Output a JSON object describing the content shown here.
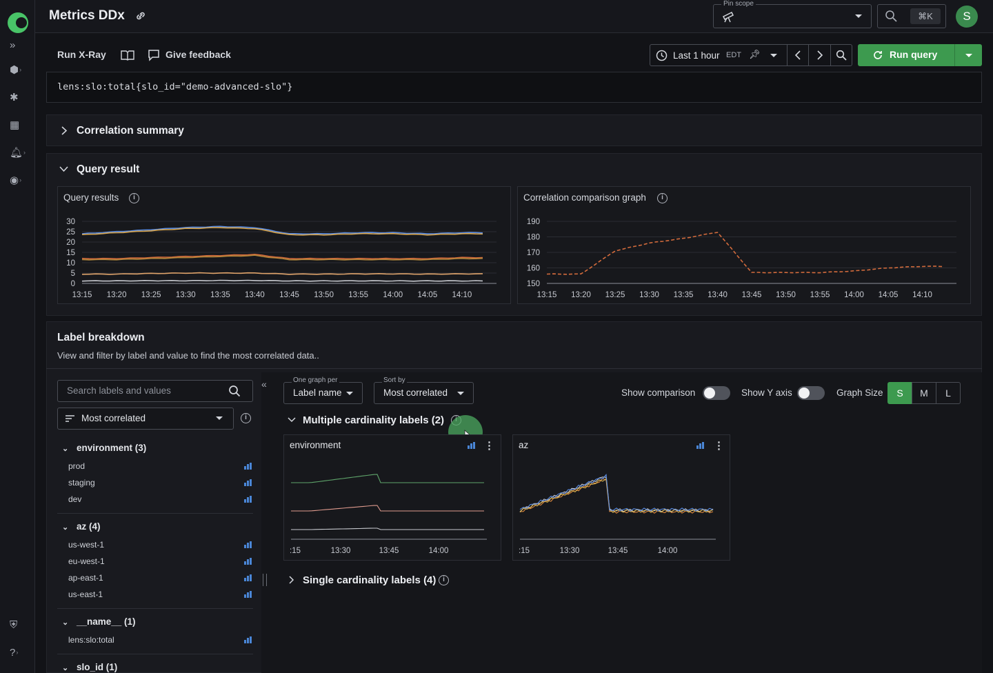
{
  "app": {
    "title": "Metrics DDx"
  },
  "header": {
    "pin_scope_label": "Pin scope",
    "search_shortcut": "⌘K",
    "avatar_initial": "S"
  },
  "toolbar": {
    "run_xray": "Run X-Ray",
    "give_feedback": "Give feedback",
    "time_range": "Last 1 hour",
    "timezone": "EDT",
    "run_query": "Run query"
  },
  "query": {
    "expression": "lens:slo:total{slo_id=\"demo-advanced-slo\"}"
  },
  "correlation_summary": {
    "title": "Correlation summary"
  },
  "query_result": {
    "title": "Query result",
    "results_title": "Query results",
    "comparison_title": "Correlation comparison graph"
  },
  "label_breakdown": {
    "title": "Label breakdown",
    "description": "View and filter by label and value to find the most correlated data..",
    "search_placeholder": "Search labels and values",
    "sort_value": "Most correlated",
    "groups": [
      {
        "name": "environment (3)",
        "items": [
          "prod",
          "staging",
          "dev"
        ]
      },
      {
        "name": "az (4)",
        "items": [
          "us-west-1",
          "eu-west-1",
          "ap-east-1",
          "us-east-1"
        ]
      },
      {
        "name": "__name__ (1)",
        "items": [
          "lens:slo:total"
        ]
      },
      {
        "name": "slo_id (1)",
        "items": []
      }
    ],
    "graph_per_label": "One graph per",
    "graph_per_value": "Label name",
    "sort_by_label": "Sort by",
    "sort_by_value": "Most correlated",
    "show_comparison": "Show comparison",
    "show_y_axis": "Show Y axis",
    "graph_size_label": "Graph Size",
    "graph_sizes": [
      "S",
      "M",
      "L"
    ],
    "selected_size": "S",
    "multiple_title": "Multiple cardinality labels (2)",
    "single_title": "Single cardinality labels (4)",
    "cards": [
      {
        "title": "environment",
        "x_ticks": [
          ":15",
          "13:30",
          "13:45",
          "14:00"
        ]
      },
      {
        "title": "az",
        "x_ticks": [
          ":15",
          "13:30",
          "13:45",
          "14:00"
        ]
      }
    ]
  },
  "chart_data": [
    {
      "type": "line",
      "title": "Query results",
      "x": [
        "13:15",
        "13:20",
        "13:25",
        "13:30",
        "13:35",
        "13:40",
        "13:45",
        "13:50",
        "13:55",
        "14:00",
        "14:05",
        "14:10"
      ],
      "ylim": [
        0,
        30
      ],
      "y_ticks": [
        0,
        5,
        10,
        15,
        20,
        25,
        30
      ],
      "series": [
        {
          "color": "#5b8ee6",
          "values": [
            24,
            25,
            26,
            27,
            27.5,
            27,
            24,
            24,
            24.5,
            24.5,
            24,
            24.5
          ]
        },
        {
          "color": "#d9a64e",
          "values": [
            23.5,
            24.5,
            25.5,
            26.5,
            27,
            26.5,
            23.5,
            23.5,
            24,
            24,
            23.5,
            24
          ]
        },
        {
          "color": "#d36b3c",
          "values": [
            12,
            12,
            12.5,
            13,
            13.5,
            14,
            12,
            12,
            12,
            12,
            12,
            12.5
          ]
        },
        {
          "color": "#b3863a",
          "values": [
            11.5,
            11.5,
            12,
            12.5,
            13,
            13.5,
            11.5,
            11.5,
            11.5,
            11.5,
            11.5,
            12
          ]
        },
        {
          "color": "#e0a46b",
          "values": [
            4.5,
            4.5,
            4.8,
            5,
            5,
            5,
            4.5,
            4.5,
            4.6,
            4.6,
            4.5,
            4.6
          ]
        },
        {
          "color": "#c7c9cf",
          "values": [
            1.2,
            1.2,
            1.3,
            1.3,
            1.4,
            1.4,
            1.2,
            1.2,
            1.2,
            1.2,
            1.2,
            1.2
          ]
        }
      ]
    },
    {
      "type": "line",
      "title": "Correlation comparison graph",
      "x": [
        "13:15",
        "13:20",
        "13:25",
        "13:30",
        "13:35",
        "13:40",
        "13:45",
        "13:50",
        "13:55",
        "14:00",
        "14:05",
        "14:10"
      ],
      "ylim": [
        150,
        190
      ],
      "y_ticks": [
        150,
        160,
        170,
        180,
        190
      ],
      "series": [
        {
          "color": "#d36b3c",
          "values": [
            156,
            156,
            171,
            176,
            179,
            183,
            157,
            157,
            157,
            158,
            160,
            161
          ]
        }
      ]
    }
  ]
}
